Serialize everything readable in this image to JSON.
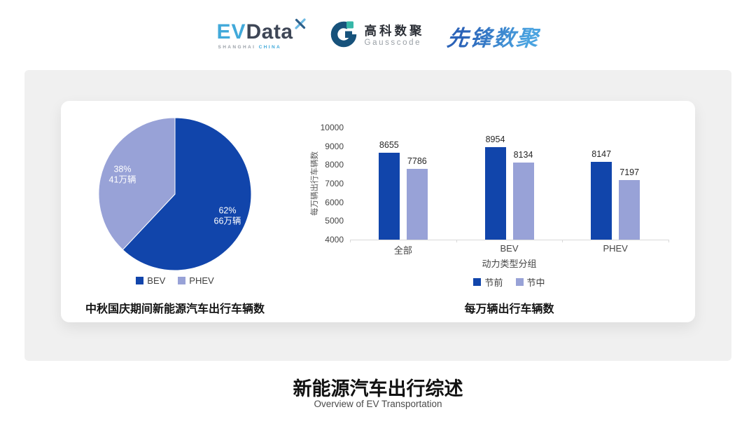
{
  "header": {
    "evdata": {
      "ev": "EV",
      "data": "Data",
      "sub_left": "SHANGHAI",
      "sub_right": "CHINA"
    },
    "gausscode": {
      "cn": "高科数聚",
      "en": "Gausscode"
    },
    "pioneer": {
      "text": "先锋数聚"
    }
  },
  "footer": {
    "title": "新能源汽车出行综述",
    "subtitle": "Overview of EV Transportation"
  },
  "colors": {
    "primary_dark_blue": "#1145ab",
    "light_purple_blue": "#98a2d7",
    "panel_gray": "#f0f0f0",
    "gauss_navy": "#17527b",
    "gauss_teal": "#36b7a8",
    "evdata_blue": "#41a9da",
    "pioneer_blue": "#3279cb"
  },
  "chart_data": [
    {
      "type": "pie",
      "title": "中秋国庆期间新能源汽车出行车辆数",
      "labels": [
        "BEV",
        "PHEV"
      ],
      "values": [
        62,
        38
      ],
      "value_texts": [
        [
          "62%",
          "66万辆"
        ],
        [
          "38%",
          "41万辆"
        ]
      ],
      "colors": [
        "#1145ab",
        "#98a2d7"
      ],
      "start_angle_deg": 0,
      "legend_position": "bottom"
    },
    {
      "type": "bar",
      "title": "每万辆出行车辆数",
      "xlabel": "动力类型分组",
      "ylabel": "每万辆出行车辆数",
      "categories": [
        "全部",
        "BEV",
        "PHEV"
      ],
      "series": [
        {
          "name": "节前",
          "color": "#1145ab",
          "values": [
            8655,
            8954,
            8147
          ]
        },
        {
          "name": "节中",
          "color": "#98a2d7",
          "values": [
            7786,
            8134,
            7197
          ]
        }
      ],
      "ylim": [
        4000,
        10000
      ],
      "ytick_step": 1000,
      "grid": false,
      "legend_position": "bottom"
    }
  ]
}
